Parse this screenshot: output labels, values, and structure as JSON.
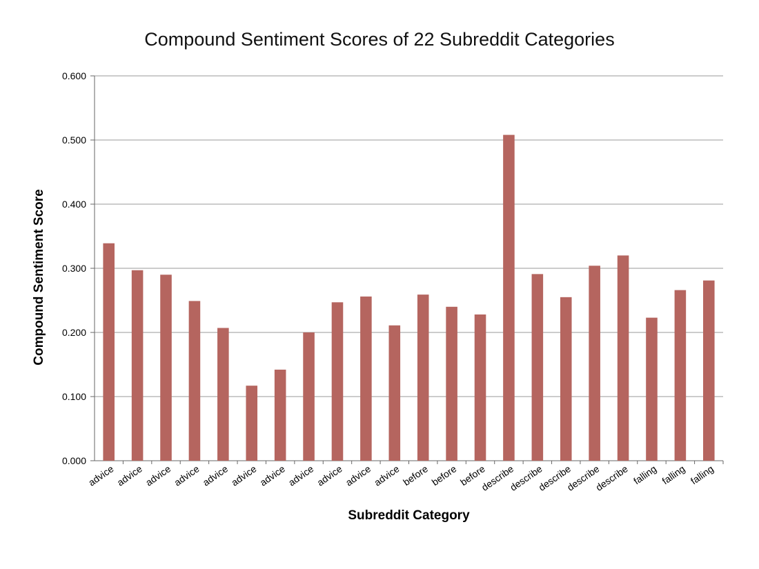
{
  "chart_data": {
    "type": "bar",
    "title": "Compound Sentiment Scores of 22 Subreddit Categories",
    "xlabel": "Subreddit Category",
    "ylabel": "Compound Sentiment Score",
    "ylim": [
      0,
      0.6
    ],
    "yticks": [
      "0.000",
      "0.100",
      "0.200",
      "0.300",
      "0.400",
      "0.500",
      "0.600"
    ],
    "grid": true,
    "legend": "none",
    "bar_color": "#b5655f",
    "categories": [
      "advice",
      "advice",
      "advice",
      "advice",
      "advice",
      "advice",
      "advice",
      "advice",
      "advice",
      "advice",
      "advice",
      "before",
      "before",
      "before",
      "describe",
      "describe",
      "describe",
      "describe",
      "describe",
      "falling",
      "falling",
      "falling"
    ],
    "values": [
      0.339,
      0.297,
      0.29,
      0.249,
      0.207,
      0.117,
      0.142,
      0.2,
      0.247,
      0.256,
      0.211,
      0.259,
      0.24,
      0.228,
      0.508,
      0.291,
      0.255,
      0.304,
      0.32,
      0.223,
      0.266,
      0.281
    ]
  }
}
